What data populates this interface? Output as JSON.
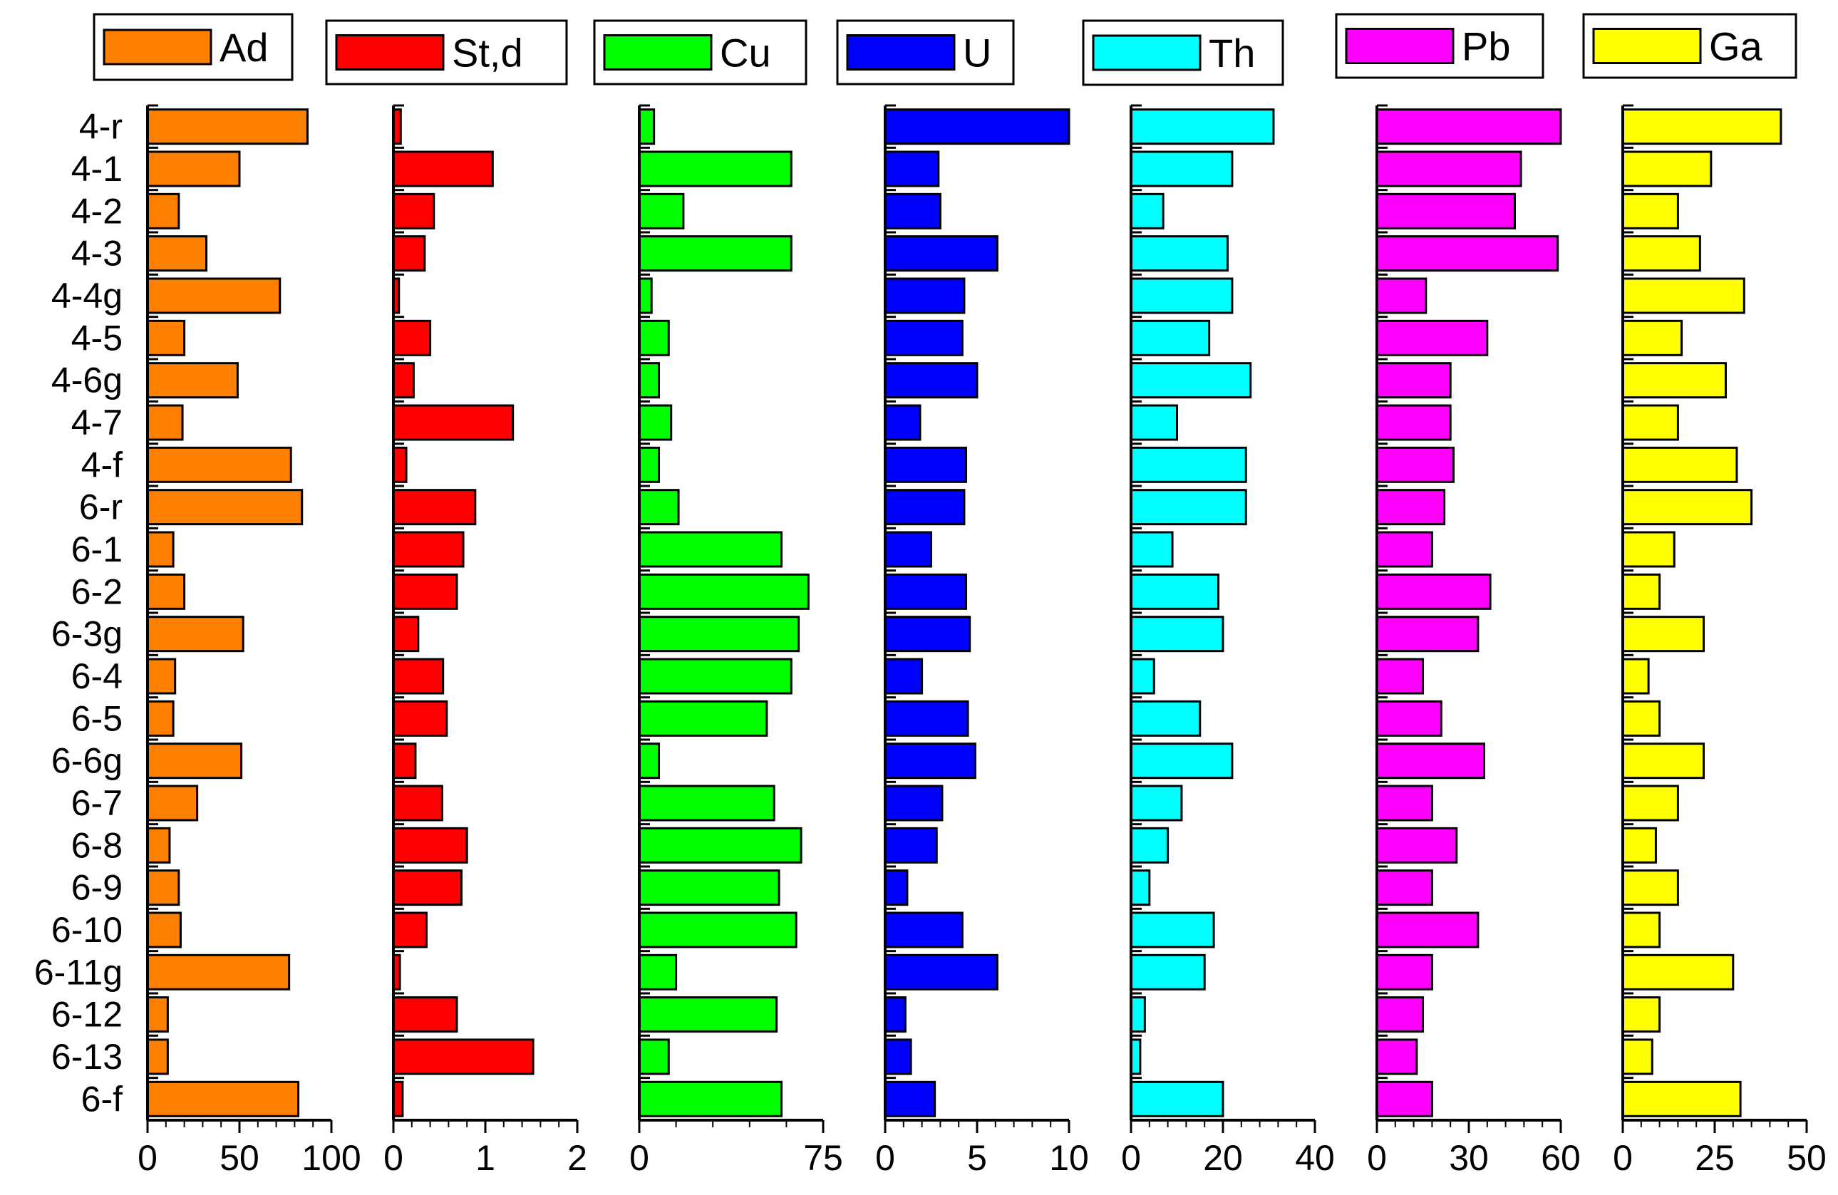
{
  "chart_data": {
    "type": "bar",
    "orientation": "horizontal",
    "categories": [
      "4-r",
      "4-1",
      "4-2",
      "4-3",
      "4-4g",
      "4-5",
      "4-6g",
      "4-7",
      "4-f",
      "6-r",
      "6-1",
      "6-2",
      "6-3g",
      "6-4",
      "6-5",
      "6-6g",
      "6-7",
      "6-8",
      "6-9",
      "6-10",
      "6-11g",
      "6-12",
      "6-13",
      "6-f"
    ],
    "panels": [
      {
        "name": "Ad",
        "color": "#ff8000",
        "xlim": [
          0,
          100
        ],
        "ticks": [
          "0",
          "50",
          "100"
        ],
        "tick_values": [
          0,
          50,
          100
        ],
        "values": [
          87,
          50,
          17,
          32,
          72,
          20,
          49,
          19,
          78,
          84,
          14,
          20,
          52,
          15,
          14,
          51,
          27,
          12,
          17,
          18,
          77,
          11,
          11,
          82
        ]
      },
      {
        "name": "St,d",
        "color": "#ff0000",
        "xlim": [
          0,
          2
        ],
        "ticks": [
          "0",
          "1",
          "2"
        ],
        "tick_values": [
          0,
          1,
          2
        ],
        "values": [
          0.08,
          1.08,
          0.44,
          0.34,
          0.06,
          0.4,
          0.22,
          1.3,
          0.14,
          0.89,
          0.76,
          0.69,
          0.27,
          0.54,
          0.58,
          0.24,
          0.53,
          0.8,
          0.74,
          0.36,
          0.07,
          0.69,
          1.52,
          0.1
        ]
      },
      {
        "name": "Cu",
        "color": "#00ff00",
        "xlim": [
          0,
          75
        ],
        "ticks": [
          "0",
          "75"
        ],
        "tick_values": [
          0,
          75
        ],
        "values": [
          6,
          62,
          18,
          62,
          5,
          12,
          8,
          13,
          8,
          16,
          58,
          69,
          65,
          62,
          52,
          8,
          55,
          66,
          57,
          64,
          15,
          56,
          12,
          58
        ]
      },
      {
        "name": "U",
        "color": "#0000ff",
        "xlim": [
          0,
          10
        ],
        "ticks": [
          "0",
          "5",
          "10"
        ],
        "tick_values": [
          0,
          5,
          10
        ],
        "values": [
          10,
          2.9,
          3,
          6.1,
          4.3,
          4.2,
          5,
          1.9,
          4.4,
          4.3,
          2.5,
          4.4,
          4.6,
          2,
          4.5,
          4.9,
          3.1,
          2.8,
          1.2,
          4.2,
          6.1,
          1.1,
          1.4,
          2.7
        ]
      },
      {
        "name": "Th",
        "color": "#00ffff",
        "xlim": [
          0,
          40
        ],
        "ticks": [
          "0",
          "20",
          "40"
        ],
        "tick_values": [
          0,
          20,
          40
        ],
        "values": [
          31,
          22,
          7,
          21,
          22,
          17,
          26,
          10,
          25,
          25,
          9,
          19,
          20,
          5,
          15,
          22,
          11,
          8,
          4,
          18,
          16,
          3,
          2,
          20
        ]
      },
      {
        "name": "Pb",
        "color": "#ff00ff",
        "xlim": [
          0,
          60
        ],
        "ticks": [
          "0",
          "30",
          "60"
        ],
        "tick_values": [
          0,
          30,
          60
        ],
        "values": [
          60,
          47,
          45,
          59,
          16,
          36,
          24,
          24,
          25,
          22,
          18,
          37,
          33,
          15,
          21,
          35,
          18,
          26,
          18,
          33,
          18,
          15,
          13,
          18
        ]
      },
      {
        "name": "Ga",
        "color": "#ffff00",
        "xlim": [
          0,
          50
        ],
        "ticks": [
          "0",
          "25",
          "50"
        ],
        "tick_values": [
          0,
          25,
          50
        ],
        "values": [
          43,
          24,
          15,
          21,
          33,
          16,
          28,
          15,
          31,
          35,
          14,
          10,
          22,
          7,
          10,
          22,
          15,
          9,
          15,
          10,
          30,
          10,
          8,
          32
        ]
      }
    ]
  }
}
